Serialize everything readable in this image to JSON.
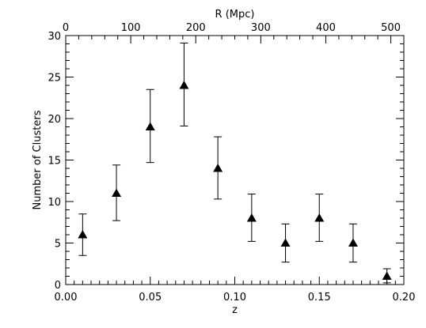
{
  "chart_data": {
    "type": "scatter",
    "xlabel": "z",
    "ylabel": "Number of Clusters",
    "top_axis_label": "R (Mpc)",
    "xlim": [
      0.0,
      0.2
    ],
    "ylim": [
      0,
      30
    ],
    "top_axis_lim": [
      0,
      520
    ],
    "x_ticks": [
      "0.00",
      "0.05",
      "0.10",
      "0.15",
      "0.20"
    ],
    "y_ticks": [
      "0",
      "5",
      "10",
      "15",
      "20",
      "25",
      "30"
    ],
    "top_ticks": [
      "0",
      "100",
      "200",
      "300",
      "400",
      "500"
    ],
    "points": [
      {
        "x": 0.01,
        "y": 6,
        "err_low": 3.5,
        "err_high": 8.5
      },
      {
        "x": 0.03,
        "y": 11,
        "err_low": 7.7,
        "err_high": 14.4
      },
      {
        "x": 0.05,
        "y": 19,
        "err_low": 14.7,
        "err_high": 23.5
      },
      {
        "x": 0.07,
        "y": 24,
        "err_low": 19.1,
        "err_high": 29.1
      },
      {
        "x": 0.09,
        "y": 14,
        "err_low": 10.3,
        "err_high": 17.8
      },
      {
        "x": 0.11,
        "y": 8,
        "err_low": 5.2,
        "err_high": 10.9
      },
      {
        "x": 0.13,
        "y": 5,
        "err_low": 2.7,
        "err_high": 7.3
      },
      {
        "x": 0.15,
        "y": 8,
        "err_low": 5.2,
        "err_high": 10.9
      },
      {
        "x": 0.17,
        "y": 5,
        "err_low": 2.7,
        "err_high": 7.3
      },
      {
        "x": 0.19,
        "y": 1,
        "err_low": 0.2,
        "err_high": 1.9
      }
    ],
    "marker": "filled-triangle",
    "grid": false,
    "color": "#000000"
  }
}
